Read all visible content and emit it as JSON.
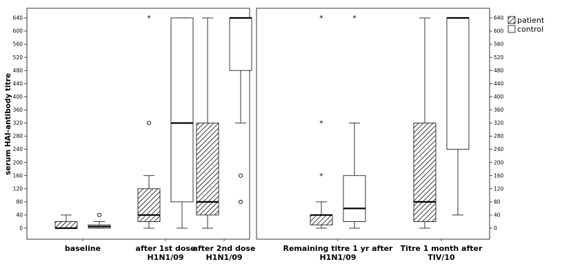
{
  "chart_data": {
    "type": "boxplot",
    "ylabel": "serum HAI-antibody titre",
    "ylim": [
      -10,
      660
    ],
    "yticks": [
      0,
      40,
      80,
      120,
      160,
      200,
      240,
      280,
      320,
      360,
      400,
      440,
      480,
      520,
      560,
      600,
      640
    ],
    "ytick_labels": [
      "0",
      "40",
      "80",
      "120",
      "160",
      "200",
      "240",
      "280",
      "320",
      "360",
      "400",
      "440",
      "480",
      "520",
      "560",
      "600",
      "640"
    ],
    "groups": [
      {
        "label_lines": [
          "baseline"
        ]
      },
      {
        "label_lines": [
          "after 1st dose",
          "H1N1/09"
        ]
      },
      {
        "label_lines": [
          "after 2nd dose",
          "H1N1/09"
        ]
      },
      {
        "label_lines": [
          "Remaining titre 1 yr after",
          "H1N1/09"
        ]
      },
      {
        "label_lines": [
          "Titre 1 month after",
          "TIV/10"
        ]
      }
    ],
    "series": [
      {
        "name": "patient",
        "pattern": "hatched",
        "boxes": [
          {
            "group": 0,
            "min": 0,
            "q1": 0,
            "median": 0,
            "q3": 20,
            "max": 40,
            "outliers": [],
            "extremes": []
          },
          {
            "group": 1,
            "min": 0,
            "q1": 20,
            "median": 40,
            "q3": 120,
            "max": 160,
            "outliers": [
              320
            ],
            "extremes": [
              640
            ]
          },
          {
            "group": 2,
            "min": 0,
            "q1": 40,
            "median": 80,
            "q3": 320,
            "max": 640,
            "outliers": [],
            "extremes": []
          },
          {
            "group": 3,
            "min": 0,
            "q1": 10,
            "median": 40,
            "q3": 40,
            "max": 80,
            "outliers": [],
            "extremes": [
              160,
              320,
              640
            ]
          },
          {
            "group": 4,
            "min": 0,
            "q1": 20,
            "median": 80,
            "q3": 320,
            "max": 640,
            "outliers": [],
            "extremes": []
          }
        ]
      },
      {
        "name": "control",
        "pattern": "open",
        "boxes": [
          {
            "group": 0,
            "min": 0,
            "q1": 0,
            "median": 5,
            "q3": 10,
            "max": 20,
            "outliers": [
              40
            ],
            "extremes": []
          },
          {
            "group": 1,
            "min": 0,
            "q1": 80,
            "median": 320,
            "q3": 640,
            "max": 640,
            "outliers": [],
            "extremes": []
          },
          {
            "group": 2,
            "min": 320,
            "q1": 480,
            "median": 640,
            "q3": 640,
            "max": 640,
            "outliers": [
              80,
              160
            ],
            "extremes": []
          },
          {
            "group": 3,
            "min": 0,
            "q1": 20,
            "median": 60,
            "q3": 160,
            "max": 320,
            "outliers": [],
            "extremes": [
              640
            ]
          },
          {
            "group": 4,
            "min": 40,
            "q1": 240,
            "median": 640,
            "q3": 640,
            "max": 640,
            "outliers": [],
            "extremes": []
          }
        ]
      }
    ],
    "markers": {
      "extreme": "*",
      "outlier": "o"
    },
    "legend": {
      "position": "top-right",
      "entries": [
        "patient",
        "control"
      ]
    }
  }
}
